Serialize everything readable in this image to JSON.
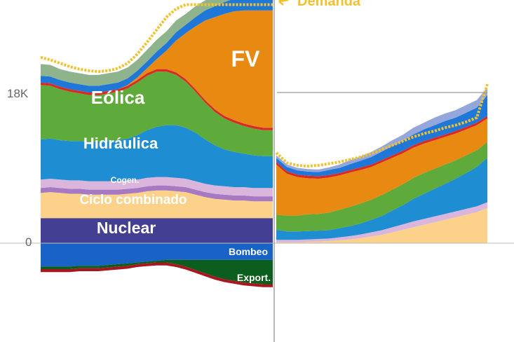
{
  "chart_data": {
    "type": "area",
    "title": "",
    "xlabel": "",
    "ylabel": "",
    "y_ticks": [
      "18K",
      "0"
    ],
    "ylim": [
      -7000,
      28500
    ],
    "grid": "off",
    "legend": "none",
    "panels": [
      {
        "name": "left",
        "x_count": 25,
        "series": [
          {
            "name": "Nuclear",
            "color": "#433f92",
            "values": [
              3000,
              3000,
              3000,
              3000,
              3000,
              3000,
              3000,
              3000,
              3000,
              3000,
              3000,
              3000,
              3000,
              3000,
              3000,
              3000,
              3000,
              3000,
              3000,
              3000,
              3000,
              3000,
              3000,
              3000,
              3000
            ]
          },
          {
            "name": "Ciclo combinado",
            "color": "#fcd28a",
            "values": [
              3000,
              3100,
              3000,
              2900,
              2900,
              2800,
              2800,
              2800,
              2800,
              2900,
              3000,
              3200,
              3300,
              3300,
              3200,
              3100,
              2800,
              2500,
              2300,
              2200,
              2100,
              2100,
              2000,
              2000,
              2000
            ]
          },
          {
            "name": "",
            "color": "#a679c2",
            "values": [
              600,
              600,
              600,
              600,
              600,
              600,
              600,
              600,
              600,
              600,
              600,
              600,
              600,
              600,
              600,
              600,
              600,
              600,
              600,
              600,
              600,
              600,
              600,
              600,
              600
            ]
          },
          {
            "name": "Cogen.",
            "color": "#dab6dc",
            "values": [
              1000,
              1000,
              1000,
              1000,
              1000,
              1000,
              1000,
              1000,
              1000,
              1000,
              1000,
              1000,
              1000,
              1000,
              1000,
              1000,
              1000,
              1000,
              1000,
              1000,
              1000,
              1000,
              1000,
              1000,
              1000
            ]
          },
          {
            "name": "Hidráulica",
            "color": "#1e8dd2",
            "values": [
              4800,
              4800,
              4700,
              4700,
              4700,
              4700,
              4700,
              4800,
              4900,
              5000,
              5300,
              5700,
              6000,
              6200,
              6300,
              6100,
              5800,
              5300,
              4800,
              4400,
              4200,
              4000,
              3900,
              3800,
              3800
            ]
          },
          {
            "name": "Eólica",
            "color": "#5eaa3a",
            "values": [
              6500,
              6300,
              6100,
              5900,
              5700,
              5600,
              5600,
              5700,
              5800,
              6000,
              6300,
              6500,
              6600,
              6400,
              6000,
              5500,
              4900,
              4400,
              4000,
              3700,
              3500,
              3300,
              3200,
              3100,
              3100
            ]
          },
          {
            "name": "",
            "color": "#d92a24",
            "values": [
              300,
              300,
              300,
              300,
              300,
              300,
              300,
              300,
              300,
              300,
              300,
              300,
              300,
              300,
              300,
              300,
              300,
              300,
              300,
              300,
              300,
              300,
              300,
              300,
              300
            ]
          },
          {
            "name": "FV",
            "color": "#e88a12",
            "values": [
              0,
              0,
              0,
              0,
              0,
              0,
              0,
              0,
              0,
              100,
              300,
              600,
              1200,
              2200,
              3800,
              5500,
              7500,
              9500,
              11000,
              12200,
              13000,
              13500,
              13800,
              14000,
              14000
            ]
          },
          {
            "name": "",
            "color": "#1f78d7",
            "values": [
              800,
              800,
              800,
              800,
              800,
              800,
              800,
              800,
              800,
              800,
              800,
              800,
              900,
              900,
              1000,
              1000,
              1100,
              1200,
              1300,
              1400,
              1500,
              1600,
              1700,
              1800,
              1800
            ]
          },
          {
            "name": "",
            "color": "#8fb38c",
            "values": [
              1400,
              1400,
              1300,
              1300,
              1300,
              1300,
              1300,
              1300,
              1300,
              1300,
              1300,
              1400,
              1400,
              1400,
              1400,
              1300,
              1300,
              1200,
              1200,
              1200,
              1100,
              1100,
              1100,
              1100,
              1100
            ]
          }
        ],
        "negative_series": [
          {
            "name": "Bombeo",
            "color": "#1a63c6",
            "values": [
              2800,
              2800,
              2800,
              2800,
              2700,
              2700,
              2700,
              2600,
              2500,
              2400,
              2300,
              2200,
              2100,
              2000,
              2000,
              2000,
              2000,
              2000,
              2000,
              2000,
              2000,
              2000,
              2000,
              2000,
              2000
            ]
          },
          {
            "name": "Export.",
            "color": "#0b5e1e",
            "values": [
              300,
              300,
              300,
              300,
              300,
              300,
              300,
              300,
              300,
              300,
              200,
              200,
              200,
              300,
              500,
              800,
              1200,
              1600,
              2000,
              2300,
              2500,
              2700,
              2800,
              2900,
              2900
            ]
          },
          {
            "name": "",
            "color": "#a6171f",
            "values": [
              350,
              350,
              350,
              350,
              350,
              350,
              350,
              350,
              350,
              350,
              350,
              350,
              350,
              350,
              350,
              350,
              350,
              350,
              350,
              350,
              350,
              350,
              350,
              350,
              350
            ]
          }
        ],
        "demanda": [
          22200,
          21900,
          21500,
          21100,
          20800,
          20600,
          20500,
          20600,
          20900,
          21500,
          22600,
          24000,
          25500,
          27000,
          28000,
          28500,
          28500,
          28500,
          28500,
          28500,
          28500,
          28500,
          28500,
          28500,
          28500
        ]
      },
      {
        "name": "right",
        "x_count": 21,
        "series": [
          {
            "name": "",
            "color": "#fcd28a",
            "values": [
              100,
              100,
              100,
              150,
              200,
              250,
              350,
              450,
              600,
              800,
              1000,
              1300,
              1600,
              1900,
              2200,
              2500,
              2800,
              3100,
              3400,
              3700,
              4200
            ]
          },
          {
            "name": "",
            "color": "#dab6dc",
            "values": [
              300,
              300,
              300,
              300,
              300,
              300,
              350,
              400,
              450,
              500,
              550,
              600,
              650,
              700,
              700,
              700,
              700,
              700,
              700,
              700,
              700
            ]
          },
          {
            "name": "",
            "color": "#1e8dd2",
            "values": [
              1200,
              1000,
              1000,
              1000,
              1000,
              1000,
              1100,
              1200,
              1300,
              1500,
              1700,
              2000,
              2300,
              2700,
              3000,
              3300,
              3600,
              3900,
              4300,
              4700,
              5300
            ]
          },
          {
            "name": "",
            "color": "#5eaa3a",
            "values": [
              1800,
              1900,
              1900,
              2000,
              2000,
              2100,
              2200,
              2300,
              2400,
              2400,
              2500,
              2500,
              2500,
              2500,
              2500,
              2400,
              2300,
              2200,
              2100,
              2000,
              1900
            ]
          },
          {
            "name": "",
            "color": "#e88a12",
            "values": [
              6000,
              5000,
              4600,
              4300,
              4200,
              4200,
              4100,
              4100,
              4000,
              3900,
              3900,
              3800,
              3700,
              3600,
              3500,
              3400,
              3300,
              3200,
              3100,
              3000,
              2800
            ]
          },
          {
            "name": "",
            "color": "#d92a24",
            "values": [
              300,
              300,
              300,
              300,
              300,
              300,
              300,
              300,
              300,
              300,
              300,
              300,
              300,
              300,
              300,
              300,
              300,
              300,
              300,
              300,
              300
            ]
          },
          {
            "name": "",
            "color": "#1f78d7",
            "values": [
              500,
              500,
              500,
              500,
              500,
              600,
              600,
              700,
              800,
              900,
              1000,
              1100,
              1200,
              1300,
              1400,
              1500,
              1600,
              1600,
              1700,
              1800,
              2500
            ]
          },
          {
            "name": "",
            "color": "#94a7dd",
            "values": [
              300,
              300,
              300,
              300,
              300,
              300,
              400,
              500,
              500,
              600,
              600,
              700,
              700,
              800,
              800,
              900,
              900,
              900,
              900,
              900,
              900
            ]
          }
        ],
        "demanda": [
          10800,
          9600,
          9300,
          9200,
          9300,
          9500,
          9700,
          10000,
          10300,
          10700,
          11200,
          11700,
          12200,
          12700,
          13100,
          13400,
          13800,
          14100,
          14500,
          15000,
          19000
        ]
      }
    ],
    "annotations": [
      {
        "text": "FV",
        "color": "#ffffff"
      },
      {
        "text": "Eólica",
        "color": "#ffffff"
      },
      {
        "text": "Hidráulica",
        "color": "#ffffff"
      },
      {
        "text": "Cogen.",
        "color": "#ffffff"
      },
      {
        "text": "Ciclo combinado",
        "color": "#ffffff"
      },
      {
        "text": "Nuclear",
        "color": "#ffffff"
      },
      {
        "text": "Bombeo",
        "color": "#ffffff"
      },
      {
        "text": "Export.",
        "color": "#ffffff"
      },
      {
        "text": "Demanda",
        "color": "#f2c12e"
      }
    ]
  }
}
